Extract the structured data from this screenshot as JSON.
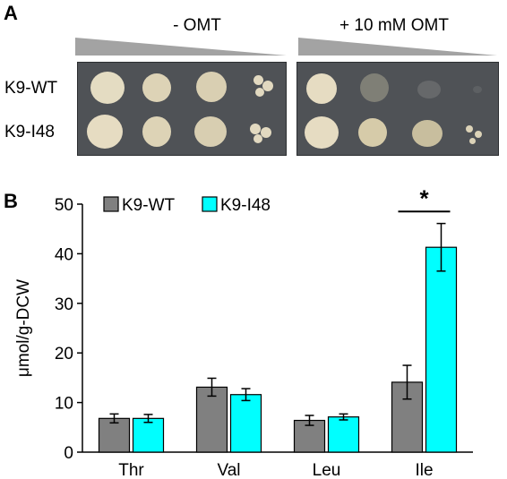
{
  "panel_a": {
    "letter": "A",
    "conditions": [
      {
        "label": "- OMT"
      },
      {
        "label": "+ 10 mM OMT"
      }
    ],
    "strains": [
      "K9-WT",
      "K9-I48"
    ],
    "colors": {
      "plate": "#4f5256",
      "colony": "#e6dcc2",
      "wedge": "#a3a3a3"
    }
  },
  "panel_b": {
    "letter": "B",
    "significance_marker": "*"
  },
  "chart_data": {
    "type": "bar",
    "categories": [
      "Thr",
      "Val",
      "Leu",
      "Ile"
    ],
    "series": [
      {
        "name": "K9-WT",
        "color": "#808080",
        "values": [
          6.8,
          13.1,
          6.4,
          14.1
        ],
        "errors": [
          0.9,
          1.8,
          1.0,
          3.4
        ]
      },
      {
        "name": "K9-I48",
        "color": "#00ffff",
        "values": [
          6.8,
          11.6,
          7.1,
          41.3
        ],
        "errors": [
          0.8,
          1.2,
          0.6,
          4.8
        ]
      }
    ],
    "xlabel": "",
    "ylabel": "μmol/g-DCW",
    "ylim": [
      0,
      50
    ],
    "yticks": [
      0,
      10,
      20,
      30,
      40,
      50
    ],
    "grid": false,
    "legend": "top-left"
  }
}
